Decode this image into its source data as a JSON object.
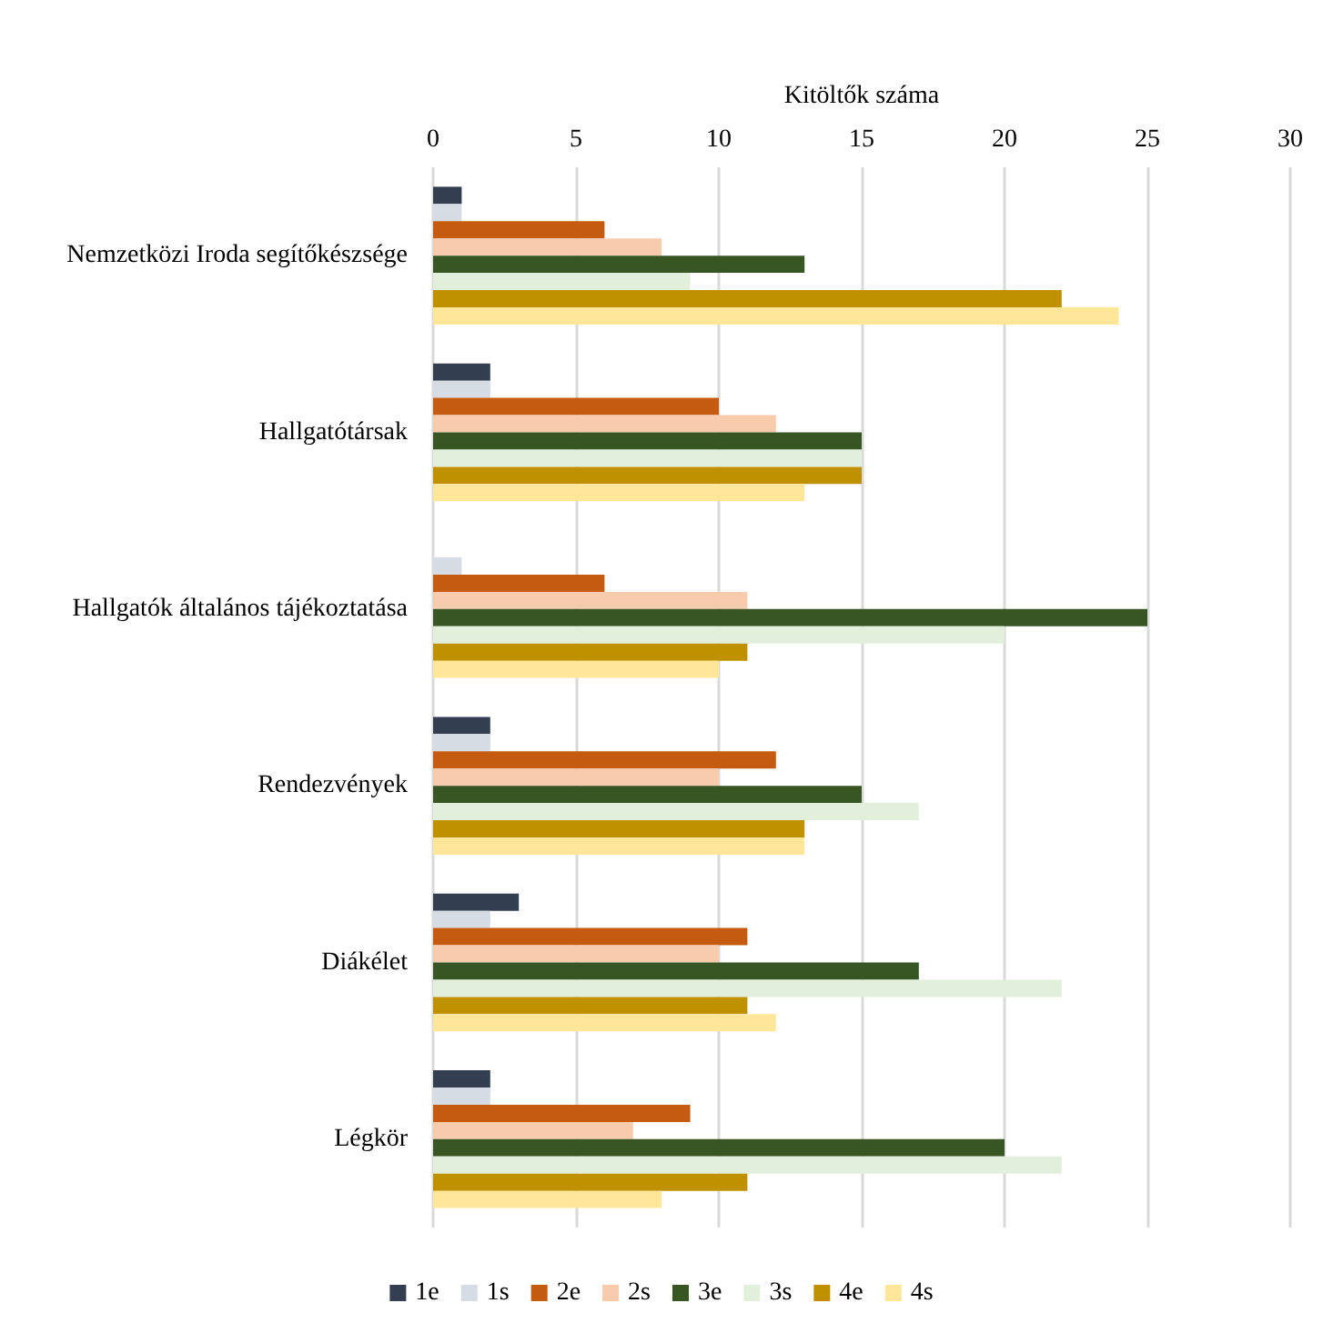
{
  "chart_data": {
    "type": "bar",
    "orientation": "horizontal",
    "xlabel": "Kitöltők száma",
    "categories": [
      "Nemzetközi Iroda segítőkészsége",
      "Hallgatótársak",
      "Hallgatók általános tájékoztatása",
      "Rendezvények",
      "Diákélet",
      "Légkör"
    ],
    "series": [
      {
        "name": "1e",
        "color": "#333f50",
        "values": [
          1,
          2,
          0,
          2,
          3,
          2
        ]
      },
      {
        "name": "1s",
        "color": "#d6dce4",
        "values": [
          1,
          2,
          1,
          2,
          2,
          2
        ]
      },
      {
        "name": "2e",
        "color": "#c55a11",
        "values": [
          6,
          10,
          6,
          12,
          11,
          9
        ]
      },
      {
        "name": "2s",
        "color": "#f8cbad",
        "values": [
          8,
          12,
          11,
          10,
          10,
          7
        ]
      },
      {
        "name": "3e",
        "color": "#375623",
        "values": [
          13,
          15,
          25,
          15,
          17,
          20
        ]
      },
      {
        "name": "3s",
        "color": "#e2efda",
        "values": [
          9,
          15,
          20,
          17,
          22,
          22
        ]
      },
      {
        "name": "4e",
        "color": "#bf9000",
        "values": [
          22,
          15,
          11,
          13,
          11,
          11
        ]
      },
      {
        "name": "4s",
        "color": "#ffe699",
        "values": [
          24,
          13,
          10,
          13,
          12,
          8
        ]
      }
    ],
    "xlim": [
      0,
      30
    ],
    "xticks": [
      0,
      5,
      10,
      15,
      20,
      25,
      30
    ],
    "grid": "x",
    "legend": "bottom"
  }
}
